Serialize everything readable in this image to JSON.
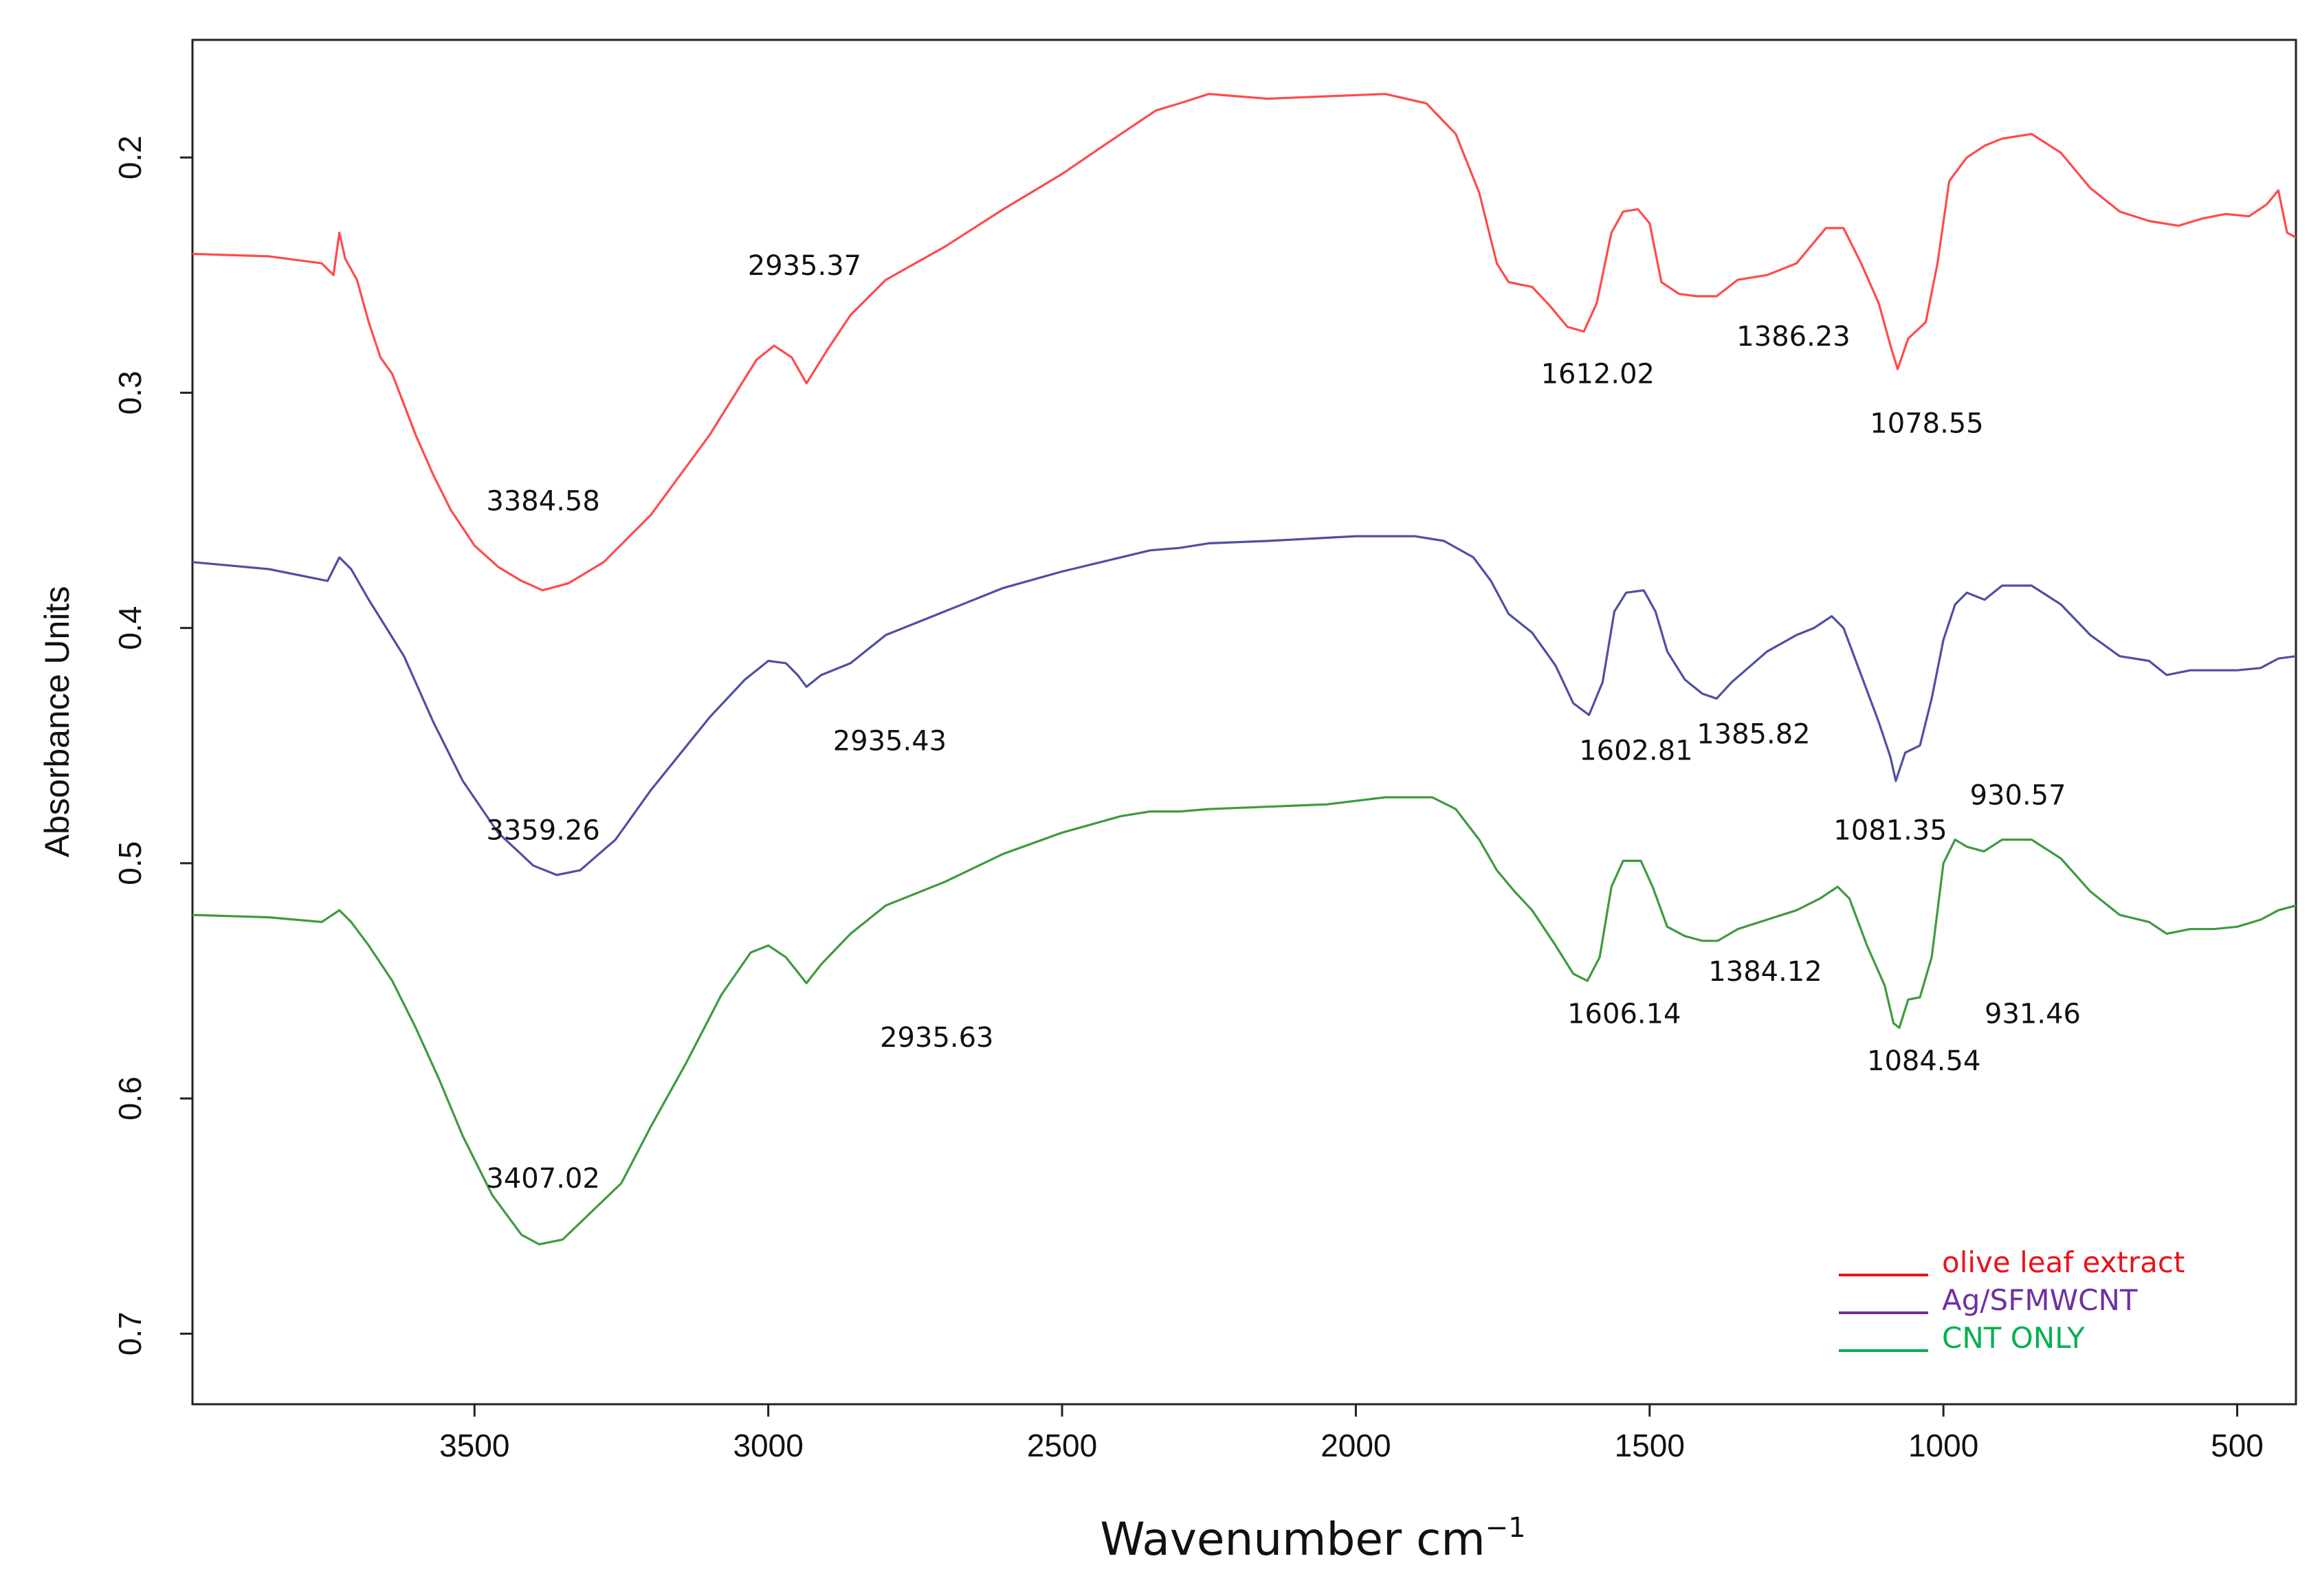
{
  "chart_data": {
    "type": "line",
    "title": "",
    "xlabel": "Wavenumber cm",
    "xlabel_superscript": "−1",
    "ylabel": "Absorbance Units",
    "xlim": [
      3980,
      400
    ],
    "ylim": [
      0.15,
      0.73
    ],
    "y_inverted": true,
    "grid": false,
    "legend_position": "bottom-right",
    "x_ticks": [
      {
        "value": 3500,
        "label": "3500"
      },
      {
        "value": 3000,
        "label": "3000"
      },
      {
        "value": 2500,
        "label": "2500"
      },
      {
        "value": 2000,
        "label": "2000"
      },
      {
        "value": 1500,
        "label": "1500"
      },
      {
        "value": 1000,
        "label": "1000"
      },
      {
        "value": 500,
        "label": "500"
      }
    ],
    "y_ticks": [
      {
        "value": 0.2,
        "label": "0.2"
      },
      {
        "value": 0.3,
        "label": "0.3"
      },
      {
        "value": 0.4,
        "label": "0.4"
      },
      {
        "value": 0.5,
        "label": "0.5"
      },
      {
        "value": 0.6,
        "label": "0.6"
      },
      {
        "value": 0.7,
        "label": "0.7"
      }
    ],
    "series": [
      {
        "name": "olive leaf extract",
        "color": "#ff4b4b",
        "legend_color": "#e8131b",
        "points": [
          [
            3980,
            0.241
          ],
          [
            3850,
            0.242
          ],
          [
            3760,
            0.245
          ],
          [
            3740,
            0.25
          ],
          [
            3730,
            0.232
          ],
          [
            3720,
            0.243
          ],
          [
            3700,
            0.252
          ],
          [
            3680,
            0.27
          ],
          [
            3660,
            0.285
          ],
          [
            3640,
            0.292
          ],
          [
            3620,
            0.305
          ],
          [
            3600,
            0.318
          ],
          [
            3570,
            0.335
          ],
          [
            3540,
            0.35
          ],
          [
            3500,
            0.365
          ],
          [
            3460,
            0.374
          ],
          [
            3420,
            0.38
          ],
          [
            3384,
            0.384
          ],
          [
            3340,
            0.381
          ],
          [
            3280,
            0.372
          ],
          [
            3200,
            0.352
          ],
          [
            3100,
            0.318
          ],
          [
            3020,
            0.286
          ],
          [
            2990,
            0.28
          ],
          [
            2960,
            0.285
          ],
          [
            2935,
            0.296
          ],
          [
            2900,
            0.282
          ],
          [
            2860,
            0.267
          ],
          [
            2800,
            0.252
          ],
          [
            2700,
            0.238
          ],
          [
            2600,
            0.222
          ],
          [
            2500,
            0.207
          ],
          [
            2400,
            0.19
          ],
          [
            2340,
            0.18
          ],
          [
            2300,
            0.177
          ],
          [
            2250,
            0.173
          ],
          [
            2150,
            0.175
          ],
          [
            2050,
            0.174
          ],
          [
            1950,
            0.173
          ],
          [
            1880,
            0.177
          ],
          [
            1830,
            0.19
          ],
          [
            1790,
            0.215
          ],
          [
            1760,
            0.245
          ],
          [
            1740,
            0.253
          ],
          [
            1700,
            0.255
          ],
          [
            1670,
            0.263
          ],
          [
            1640,
            0.272
          ],
          [
            1612,
            0.274
          ],
          [
            1590,
            0.262
          ],
          [
            1565,
            0.232
          ],
          [
            1545,
            0.223
          ],
          [
            1520,
            0.222
          ],
          [
            1500,
            0.228
          ],
          [
            1480,
            0.253
          ],
          [
            1450,
            0.258
          ],
          [
            1420,
            0.259
          ],
          [
            1386,
            0.259
          ],
          [
            1350,
            0.252
          ],
          [
            1300,
            0.25
          ],
          [
            1250,
            0.245
          ],
          [
            1200,
            0.23
          ],
          [
            1170,
            0.23
          ],
          [
            1140,
            0.245
          ],
          [
            1110,
            0.262
          ],
          [
            1090,
            0.28
          ],
          [
            1078,
            0.29
          ],
          [
            1060,
            0.277
          ],
          [
            1030,
            0.27
          ],
          [
            1010,
            0.245
          ],
          [
            990,
            0.21
          ],
          [
            960,
            0.2
          ],
          [
            930,
            0.195
          ],
          [
            900,
            0.192
          ],
          [
            850,
            0.19
          ],
          [
            800,
            0.198
          ],
          [
            750,
            0.213
          ],
          [
            700,
            0.223
          ],
          [
            650,
            0.227
          ],
          [
            600,
            0.229
          ],
          [
            560,
            0.226
          ],
          [
            520,
            0.224
          ],
          [
            480,
            0.225
          ],
          [
            450,
            0.22
          ],
          [
            430,
            0.214
          ],
          [
            415,
            0.232
          ],
          [
            400,
            0.234
          ]
        ]
      },
      {
        "name": "Ag/SFMWCNT",
        "color": "#4f4fa3",
        "legend_color": "#7030a0",
        "points": [
          [
            3980,
            0.372
          ],
          [
            3850,
            0.375
          ],
          [
            3750,
            0.38
          ],
          [
            3730,
            0.37
          ],
          [
            3710,
            0.375
          ],
          [
            3680,
            0.388
          ],
          [
            3650,
            0.4
          ],
          [
            3620,
            0.412
          ],
          [
            3570,
            0.44
          ],
          [
            3520,
            0.465
          ],
          [
            3460,
            0.487
          ],
          [
            3400,
            0.501
          ],
          [
            3360,
            0.505
          ],
          [
            3320,
            0.503
          ],
          [
            3260,
            0.49
          ],
          [
            3200,
            0.469
          ],
          [
            3100,
            0.438
          ],
          [
            3040,
            0.422
          ],
          [
            3000,
            0.414
          ],
          [
            2970,
            0.415
          ],
          [
            2950,
            0.42
          ],
          [
            2935,
            0.425
          ],
          [
            2910,
            0.42
          ],
          [
            2860,
            0.415
          ],
          [
            2800,
            0.403
          ],
          [
            2700,
            0.393
          ],
          [
            2600,
            0.383
          ],
          [
            2500,
            0.376
          ],
          [
            2400,
            0.37
          ],
          [
            2350,
            0.367
          ],
          [
            2300,
            0.366
          ],
          [
            2250,
            0.364
          ],
          [
            2150,
            0.363
          ],
          [
            2000,
            0.361
          ],
          [
            1900,
            0.361
          ],
          [
            1850,
            0.363
          ],
          [
            1800,
            0.37
          ],
          [
            1770,
            0.38
          ],
          [
            1740,
            0.394
          ],
          [
            1700,
            0.402
          ],
          [
            1660,
            0.416
          ],
          [
            1630,
            0.432
          ],
          [
            1603,
            0.437
          ],
          [
            1580,
            0.423
          ],
          [
            1560,
            0.393
          ],
          [
            1540,
            0.385
          ],
          [
            1510,
            0.384
          ],
          [
            1490,
            0.393
          ],
          [
            1470,
            0.41
          ],
          [
            1440,
            0.422
          ],
          [
            1410,
            0.428
          ],
          [
            1386,
            0.43
          ],
          [
            1360,
            0.423
          ],
          [
            1300,
            0.41
          ],
          [
            1250,
            0.403
          ],
          [
            1220,
            0.4
          ],
          [
            1190,
            0.395
          ],
          [
            1170,
            0.4
          ],
          [
            1140,
            0.42
          ],
          [
            1110,
            0.44
          ],
          [
            1090,
            0.455
          ],
          [
            1081,
            0.465
          ],
          [
            1065,
            0.453
          ],
          [
            1040,
            0.45
          ],
          [
            1020,
            0.43
          ],
          [
            1000,
            0.405
          ],
          [
            980,
            0.39
          ],
          [
            960,
            0.385
          ],
          [
            930,
            0.388
          ],
          [
            900,
            0.382
          ],
          [
            850,
            0.382
          ],
          [
            800,
            0.39
          ],
          [
            750,
            0.403
          ],
          [
            700,
            0.412
          ],
          [
            650,
            0.414
          ],
          [
            620,
            0.42
          ],
          [
            580,
            0.418
          ],
          [
            540,
            0.418
          ],
          [
            500,
            0.418
          ],
          [
            460,
            0.417
          ],
          [
            430,
            0.413
          ],
          [
            400,
            0.412
          ]
        ]
      },
      {
        "name": "CNT ONLY",
        "color": "#3e9a3e",
        "legend_color": "#00b050",
        "points": [
          [
            3980,
            0.522
          ],
          [
            3850,
            0.523
          ],
          [
            3760,
            0.525
          ],
          [
            3730,
            0.52
          ],
          [
            3710,
            0.525
          ],
          [
            3680,
            0.535
          ],
          [
            3640,
            0.55
          ],
          [
            3600,
            0.57
          ],
          [
            3560,
            0.592
          ],
          [
            3520,
            0.616
          ],
          [
            3470,
            0.641
          ],
          [
            3420,
            0.658
          ],
          [
            3390,
            0.662
          ],
          [
            3350,
            0.66
          ],
          [
            3300,
            0.648
          ],
          [
            3250,
            0.636
          ],
          [
            3200,
            0.612
          ],
          [
            3140,
            0.585
          ],
          [
            3080,
            0.556
          ],
          [
            3030,
            0.538
          ],
          [
            3000,
            0.535
          ],
          [
            2970,
            0.54
          ],
          [
            2935,
            0.551
          ],
          [
            2910,
            0.543
          ],
          [
            2860,
            0.53
          ],
          [
            2800,
            0.518
          ],
          [
            2700,
            0.508
          ],
          [
            2600,
            0.496
          ],
          [
            2500,
            0.487
          ],
          [
            2400,
            0.48
          ],
          [
            2350,
            0.478
          ],
          [
            2300,
            0.478
          ],
          [
            2250,
            0.477
          ],
          [
            2150,
            0.476
          ],
          [
            2050,
            0.475
          ],
          [
            1950,
            0.472
          ],
          [
            1870,
            0.472
          ],
          [
            1830,
            0.477
          ],
          [
            1790,
            0.49
          ],
          [
            1760,
            0.503
          ],
          [
            1730,
            0.512
          ],
          [
            1700,
            0.52
          ],
          [
            1660,
            0.535
          ],
          [
            1630,
            0.547
          ],
          [
            1606,
            0.55
          ],
          [
            1585,
            0.54
          ],
          [
            1565,
            0.51
          ],
          [
            1545,
            0.499
          ],
          [
            1515,
            0.499
          ],
          [
            1495,
            0.51
          ],
          [
            1470,
            0.527
          ],
          [
            1440,
            0.531
          ],
          [
            1410,
            0.533
          ],
          [
            1384,
            0.533
          ],
          [
            1350,
            0.528
          ],
          [
            1300,
            0.524
          ],
          [
            1250,
            0.52
          ],
          [
            1210,
            0.515
          ],
          [
            1180,
            0.51
          ],
          [
            1160,
            0.515
          ],
          [
            1130,
            0.535
          ],
          [
            1100,
            0.552
          ],
          [
            1085,
            0.568
          ],
          [
            1075,
            0.57
          ],
          [
            1060,
            0.558
          ],
          [
            1040,
            0.557
          ],
          [
            1020,
            0.54
          ],
          [
            1000,
            0.5
          ],
          [
            980,
            0.49
          ],
          [
            960,
            0.493
          ],
          [
            931,
            0.495
          ],
          [
            900,
            0.49
          ],
          [
            850,
            0.49
          ],
          [
            800,
            0.498
          ],
          [
            750,
            0.512
          ],
          [
            700,
            0.522
          ],
          [
            650,
            0.525
          ],
          [
            620,
            0.53
          ],
          [
            580,
            0.528
          ],
          [
            540,
            0.528
          ],
          [
            500,
            0.527
          ],
          [
            460,
            0.524
          ],
          [
            430,
            0.52
          ],
          [
            400,
            0.518
          ]
        ]
      }
    ],
    "annotations": [
      {
        "text": "3384.58",
        "x": 3480,
        "y": 0.35
      },
      {
        "text": "2935.37",
        "x": 3035,
        "y": 0.25
      },
      {
        "text": "1612.02",
        "x": 1685,
        "y": 0.296
      },
      {
        "text": "1386.23",
        "x": 1352,
        "y": 0.28
      },
      {
        "text": "1078.55",
        "x": 1125,
        "y": 0.317
      },
      {
        "text": "3359.26",
        "x": 3480,
        "y": 0.49
      },
      {
        "text": "2935.43",
        "x": 2890,
        "y": 0.452
      },
      {
        "text": "1602.81",
        "x": 1620,
        "y": 0.456
      },
      {
        "text": "1385.82",
        "x": 1420,
        "y": 0.449
      },
      {
        "text": "1081.35",
        "x": 1187,
        "y": 0.49
      },
      {
        "text": "930.57",
        "x": 955,
        "y": 0.475
      },
      {
        "text": "3407.02",
        "x": 3480,
        "y": 0.638
      },
      {
        "text": "2935.63",
        "x": 2810,
        "y": 0.578
      },
      {
        "text": "1606.14",
        "x": 1640,
        "y": 0.568
      },
      {
        "text": "1384.12",
        "x": 1400,
        "y": 0.55
      },
      {
        "text": "1084.54",
        "x": 1130,
        "y": 0.588
      },
      {
        "text": "931.46",
        "x": 930,
        "y": 0.568
      }
    ],
    "legend": [
      {
        "label": "olive leaf extract",
        "color": "#e8131b"
      },
      {
        "label": "Ag/SFMWCNT",
        "color": "#7030a0"
      },
      {
        "label": "CNT ONLY",
        "color": "#00b050"
      }
    ]
  }
}
